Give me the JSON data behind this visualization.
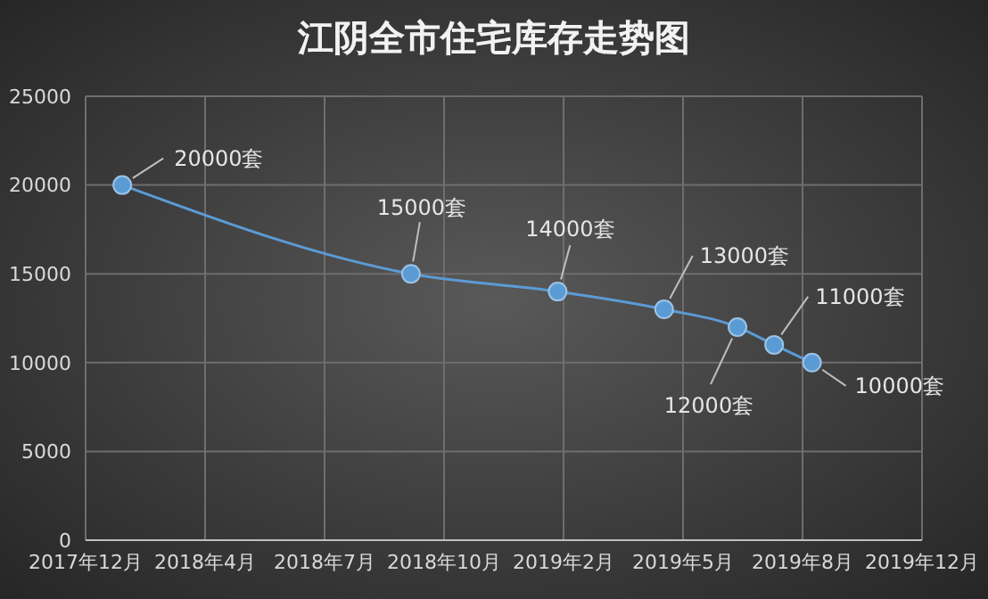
{
  "chart_data": {
    "type": "line",
    "title": "江阴全市住宅库存走势图",
    "x": [
      "2018-01-28",
      "2018-09-29",
      "2019-01-31",
      "2019-05-01",
      "2019-07-02",
      "2019-08-02",
      "2019-09-03"
    ],
    "series": [
      {
        "color": "#5b9bd5",
        "values": [
          20000,
          15000,
          14000,
          13000,
          12000,
          11000,
          10000
        ],
        "value_labels": [
          "20000套",
          "15000套",
          "14000套",
          "13000套",
          "12000套",
          "11000套",
          "10000套"
        ]
      }
    ],
    "xlim": [
      "2017-12-28",
      "2019-12-05"
    ],
    "xticks": [
      {
        "value": "2017-12-28",
        "label": "2017年12月"
      },
      {
        "value": "2018-04-08",
        "label": "2018年4月"
      },
      {
        "value": "2018-07-18",
        "label": "2018年7月"
      },
      {
        "value": "2018-10-27",
        "label": "2018年10月"
      },
      {
        "value": "2019-02-05",
        "label": "2019年2月"
      },
      {
        "value": "2019-05-17",
        "label": "2019年5月"
      },
      {
        "value": "2019-08-26",
        "label": "2019年8月"
      },
      {
        "value": "2019-12-05",
        "label": "2019年12月"
      }
    ],
    "ylim": [
      0,
      25000
    ],
    "yticks": [
      0,
      5000,
      10000,
      15000,
      20000,
      25000
    ],
    "grid": true,
    "marker": "circle",
    "line_style": "solid",
    "legend": false
  }
}
